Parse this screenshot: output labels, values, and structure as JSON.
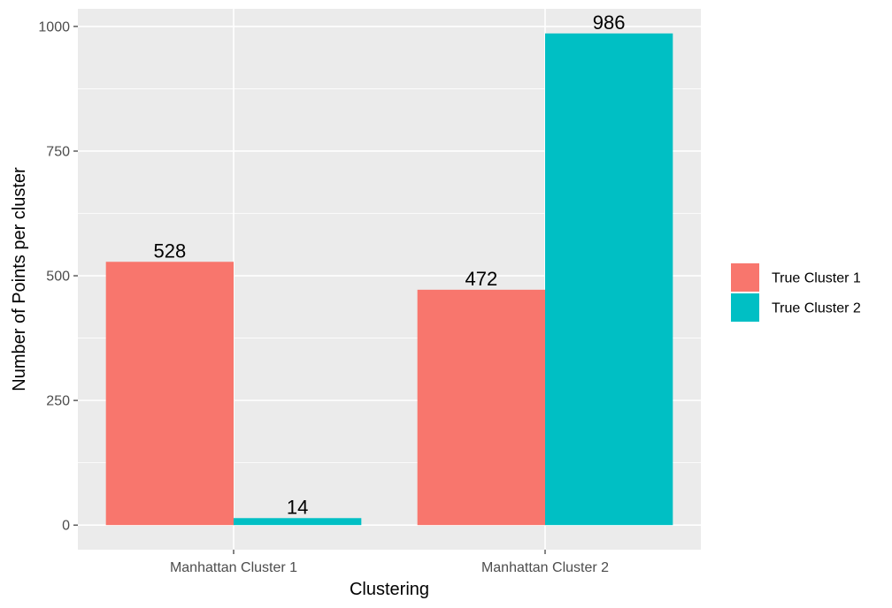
{
  "chart_data": {
    "type": "bar",
    "categories": [
      "Manhattan Cluster 1",
      "Manhattan Cluster 2"
    ],
    "series": [
      {
        "name": "True Cluster 1",
        "values": [
          528,
          472
        ],
        "color": "#F8766D"
      },
      {
        "name": "True Cluster 2",
        "values": [
          14,
          986
        ],
        "color": "#00BFC4"
      }
    ],
    "xlabel": "Clustering",
    "ylabel": "Number of Points per cluster",
    "ylim": [
      -49.3,
      1035.3
    ],
    "yticks": [
      0,
      250,
      500,
      750,
      1000
    ],
    "grid": true,
    "legend_position": "right",
    "panel_background": "#EBEBEB",
    "gridline_color": "#FFFFFF"
  }
}
